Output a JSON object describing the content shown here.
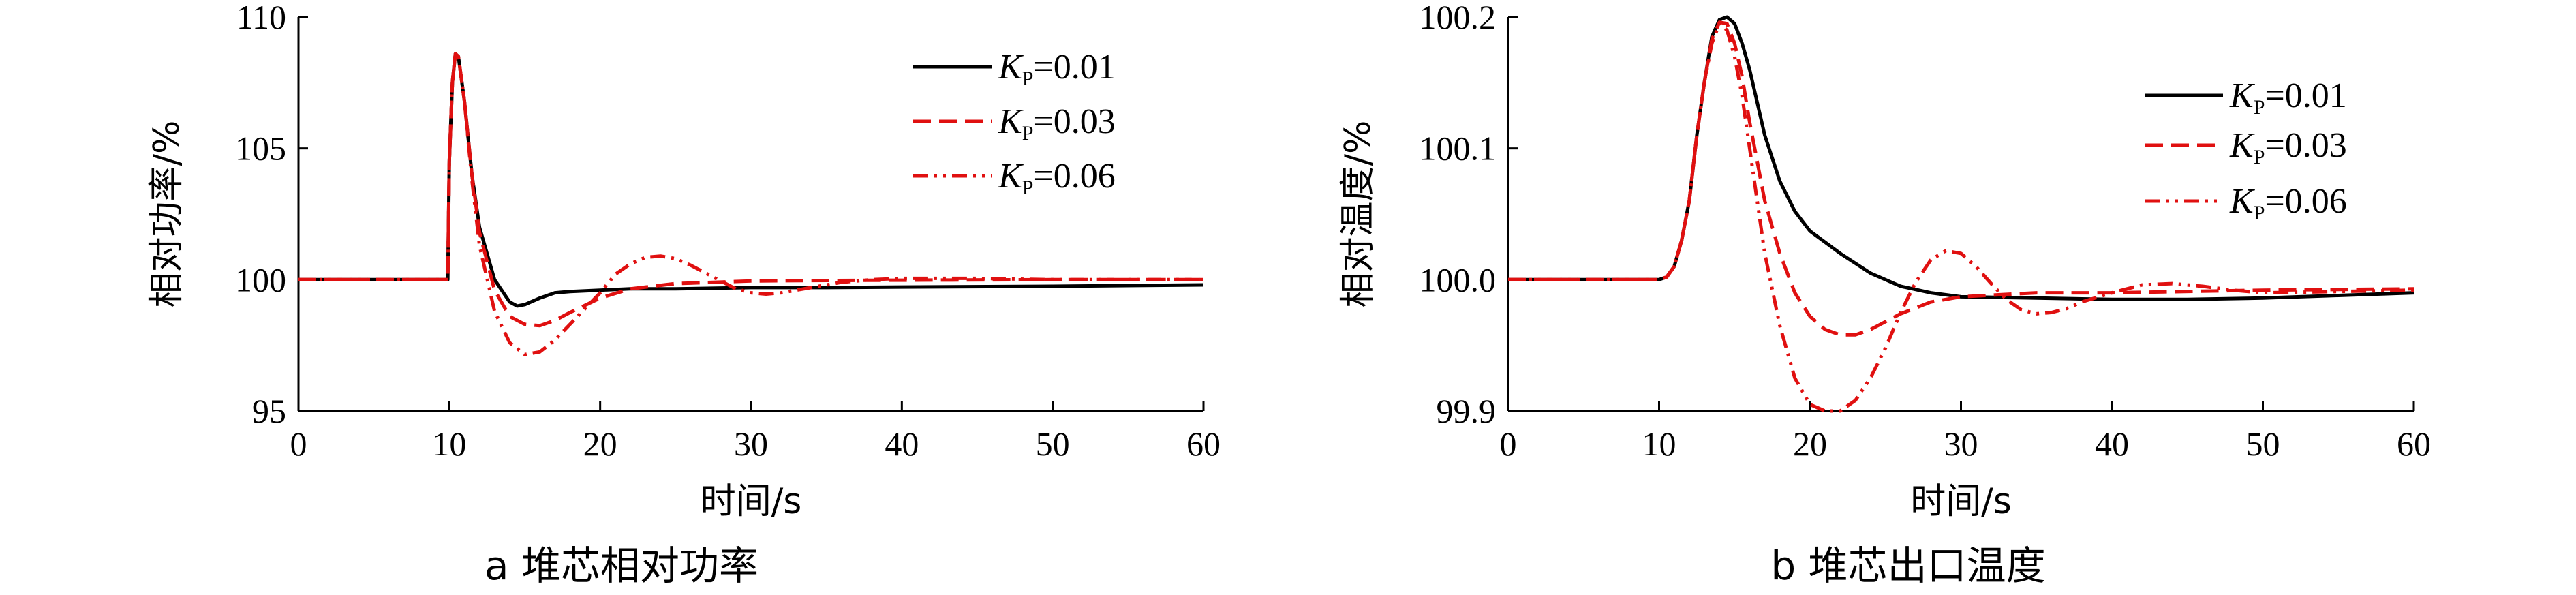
{
  "chart_data": [
    {
      "type": "line",
      "caption": "a  堆芯相对功率",
      "xlabel": "时间/s",
      "ylabel": "相对功率/%",
      "xlim": [
        0,
        60
      ],
      "ylim": [
        95,
        110
      ],
      "xticks": [
        "0",
        "10",
        "20",
        "30",
        "40",
        "50",
        "60"
      ],
      "yticks": [
        "95",
        "100",
        "105",
        "110"
      ],
      "legend_position": "top-right",
      "series": [
        {
          "name_main": "K",
          "name_sub": "P",
          "name_value": "=0.01",
          "color": "#000000",
          "style": "solid",
          "x": [
            0,
            9.9,
            10.0,
            10.2,
            10.4,
            10.6,
            11.0,
            11.5,
            12.0,
            13.0,
            14.0,
            14.5,
            15.0,
            16.0,
            17.0,
            18.0,
            20.0,
            22.0,
            25.0,
            30.0,
            35.0,
            40.0,
            50.0,
            60.0
          ],
          "y": [
            100.0,
            100.0,
            104.5,
            107.5,
            108.6,
            108.5,
            106.8,
            104.0,
            102.0,
            100.0,
            99.15,
            99.0,
            99.05,
            99.3,
            99.5,
            99.55,
            99.6,
            99.65,
            99.65,
            99.7,
            99.7,
            99.72,
            99.75,
            99.8
          ]
        },
        {
          "name_main": "K",
          "name_sub": "P",
          "name_value": "=0.03",
          "color": "#e01010",
          "style": "dashed",
          "x": [
            0,
            9.9,
            10.0,
            10.2,
            10.4,
            10.6,
            11.0,
            11.5,
            12.0,
            13.0,
            14.0,
            15.0,
            16.0,
            17.0,
            18.0,
            20.0,
            22.0,
            25.0,
            30.0,
            35.0,
            40.0,
            50.0,
            60.0
          ],
          "y": [
            100.0,
            100.0,
            104.5,
            107.5,
            108.6,
            108.5,
            106.8,
            104.0,
            101.8,
            99.6,
            98.6,
            98.3,
            98.25,
            98.45,
            98.75,
            99.3,
            99.65,
            99.85,
            99.95,
            99.97,
            99.98,
            100.0,
            100.0
          ]
        },
        {
          "name_main": "K",
          "name_sub": "P",
          "name_value": "=0.06",
          "color": "#e01010",
          "style": "dashdotdot",
          "x": [
            0,
            9.9,
            10.0,
            10.2,
            10.4,
            10.6,
            11.0,
            11.5,
            12.0,
            13.0,
            14.0,
            15.0,
            16.0,
            17.0,
            18.0,
            19.0,
            20.0,
            21.0,
            22.0,
            23.0,
            24.0,
            25.0,
            26.0,
            27.0,
            28.0,
            29.0,
            30.0,
            31.0,
            32.0,
            34.0,
            36.0,
            38.0,
            40.0,
            45.0,
            50.0,
            55.0,
            60.0
          ],
          "y": [
            100.0,
            100.0,
            104.5,
            107.5,
            108.6,
            108.5,
            106.8,
            103.8,
            101.3,
            98.8,
            97.6,
            97.15,
            97.25,
            97.7,
            98.3,
            98.9,
            99.5,
            100.2,
            100.6,
            100.85,
            100.9,
            100.8,
            100.55,
            100.25,
            99.95,
            99.65,
            99.5,
            99.45,
            99.5,
            99.7,
            99.9,
            100.0,
            100.05,
            100.05,
            100.0,
            100.0,
            100.0
          ]
        }
      ]
    },
    {
      "type": "line",
      "caption": "b  堆芯出口温度",
      "xlabel": "时间/s",
      "ylabel": "相对温度/%",
      "xlim": [
        0,
        60
      ],
      "ylim": [
        99.9,
        100.2
      ],
      "xticks": [
        "0",
        "10",
        "20",
        "30",
        "40",
        "50",
        "60"
      ],
      "yticks": [
        "99.9",
        "100.0",
        "100.1",
        "100.2"
      ],
      "legend_position": "top-right",
      "series": [
        {
          "name_main": "K",
          "name_sub": "P",
          "name_value": "=0.01",
          "color": "#000000",
          "style": "solid",
          "x": [
            0,
            10.0,
            10.5,
            11.0,
            11.5,
            12.0,
            12.5,
            13.0,
            13.5,
            14.0,
            14.5,
            15.0,
            15.5,
            16.0,
            16.5,
            17.0,
            18.0,
            19.0,
            20.0,
            22.0,
            24.0,
            26.0,
            28.0,
            30.0,
            35.0,
            40.0,
            45.0,
            50.0,
            55.0,
            60.0
          ],
          "y": [
            100.0,
            100.0,
            100.002,
            100.01,
            100.03,
            100.06,
            100.11,
            100.15,
            100.185,
            100.198,
            100.2,
            100.195,
            100.18,
            100.16,
            100.135,
            100.11,
            100.075,
            100.052,
            100.037,
            100.02,
            100.005,
            99.995,
            99.99,
            99.987,
            99.986,
            99.985,
            99.985,
            99.986,
            99.988,
            99.99
          ]
        },
        {
          "name_main": "K",
          "name_sub": "P",
          "name_value": "=0.03",
          "color": "#e01010",
          "style": "dashed",
          "x": [
            0,
            10.0,
            10.5,
            11.0,
            11.5,
            12.0,
            12.5,
            13.0,
            13.5,
            14.0,
            14.5,
            15.0,
            15.5,
            16.0,
            16.5,
            17.0,
            18.0,
            19.0,
            20.0,
            21.0,
            22.0,
            23.0,
            24.0,
            26.0,
            28.0,
            30.0,
            35.0,
            40.0,
            50.0,
            60.0
          ],
          "y": [
            100.0,
            100.0,
            100.002,
            100.01,
            100.03,
            100.06,
            100.11,
            100.15,
            100.183,
            100.196,
            100.195,
            100.18,
            100.155,
            100.12,
            100.09,
            100.06,
            100.02,
            99.99,
            99.972,
            99.962,
            99.958,
            99.958,
            99.962,
            99.974,
            99.983,
            99.987,
            99.99,
            99.99,
            99.992,
            99.993
          ]
        },
        {
          "name_main": "K",
          "name_sub": "P",
          "name_value": "=0.06",
          "color": "#e01010",
          "style": "dashdotdot",
          "x": [
            0,
            10.0,
            10.5,
            11.0,
            11.5,
            12.0,
            12.5,
            13.0,
            13.5,
            14.0,
            14.5,
            15.0,
            15.5,
            16.0,
            16.5,
            17.0,
            18.0,
            19.0,
            20.0,
            21.0,
            22.0,
            23.0,
            24.0,
            25.0,
            26.0,
            27.0,
            28.0,
            29.0,
            30.0,
            31.0,
            32.0,
            33.0,
            34.0,
            35.0,
            36.0,
            37.0,
            38.0,
            40.0,
            42.0,
            44.0,
            46.0,
            48.0,
            50.0,
            55.0,
            60.0
          ],
          "y": [
            100.0,
            100.0,
            100.002,
            100.01,
            100.03,
            100.06,
            100.11,
            100.15,
            100.18,
            100.195,
            100.19,
            100.17,
            100.14,
            100.1,
            100.06,
            100.02,
            99.965,
            99.925,
            99.905,
            99.9,
            99.9,
            99.908,
            99.925,
            99.948,
            99.975,
            99.998,
            100.015,
            100.022,
            100.02,
            100.01,
            99.997,
            99.985,
            99.977,
            99.974,
            99.975,
            99.978,
            99.983,
            99.99,
            99.996,
            99.997,
            99.995,
            99.992,
            99.99,
            99.991,
            99.992
          ]
        }
      ]
    }
  ]
}
